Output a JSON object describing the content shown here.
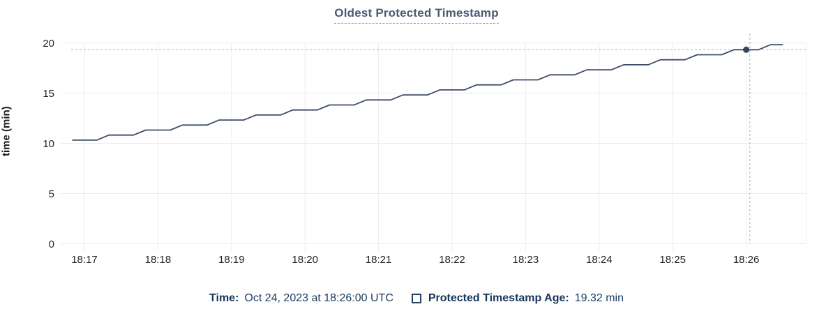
{
  "chart_data": {
    "type": "line",
    "title": "Oldest Protected Timestamp",
    "xlabel": "",
    "ylabel": "time (min)",
    "ylim": [
      0,
      20
    ],
    "y_ticks": [
      0,
      5,
      10,
      15,
      20
    ],
    "x_ticks": [
      "18:17",
      "18:18",
      "18:19",
      "18:20",
      "18:21",
      "18:22",
      "18:23",
      "18:24",
      "18:25",
      "18:26"
    ],
    "x_unit": "minutes since 18:17",
    "grid": true,
    "legend_position": "bottom",
    "series": [
      {
        "name": "Protected Timestamp Age",
        "unit": "min",
        "points": [
          [
            -0.1667,
            10.32
          ],
          [
            0.1667,
            10.32
          ],
          [
            0.3333,
            10.82
          ],
          [
            0.6667,
            10.82
          ],
          [
            0.8333,
            11.32
          ],
          [
            1.1667,
            11.32
          ],
          [
            1.3333,
            11.82
          ],
          [
            1.6667,
            11.82
          ],
          [
            1.8333,
            12.32
          ],
          [
            2.1667,
            12.32
          ],
          [
            2.3333,
            12.82
          ],
          [
            2.6667,
            12.82
          ],
          [
            2.8333,
            13.32
          ],
          [
            3.1667,
            13.32
          ],
          [
            3.3333,
            13.82
          ],
          [
            3.6667,
            13.82
          ],
          [
            3.8333,
            14.32
          ],
          [
            4.1667,
            14.32
          ],
          [
            4.3333,
            14.82
          ],
          [
            4.6667,
            14.82
          ],
          [
            4.8333,
            15.32
          ],
          [
            5.1667,
            15.32
          ],
          [
            5.3333,
            15.82
          ],
          [
            5.6667,
            15.82
          ],
          [
            5.8333,
            16.32
          ],
          [
            6.1667,
            16.32
          ],
          [
            6.3333,
            16.82
          ],
          [
            6.6667,
            16.82
          ],
          [
            6.8333,
            17.32
          ],
          [
            7.1667,
            17.32
          ],
          [
            7.3333,
            17.82
          ],
          [
            7.6667,
            17.82
          ],
          [
            7.8333,
            18.32
          ],
          [
            8.1667,
            18.32
          ],
          [
            8.3333,
            18.82
          ],
          [
            8.6667,
            18.82
          ],
          [
            8.8333,
            19.32
          ],
          [
            9.1667,
            19.32
          ],
          [
            9.3333,
            19.82
          ],
          [
            9.5,
            19.82
          ]
        ]
      }
    ],
    "hover_point": {
      "x_minutes": 9.0,
      "crosshair_x_minutes": 9.05,
      "value": 19.32,
      "time_label": "Oct 24, 2023 at 18:26:00 UTC",
      "value_label": "19.32 min"
    }
  },
  "legend": {
    "time_label": "Time:",
    "time_value": "Oct 24, 2023 at 18:26:00 UTC",
    "series_label": "Protected Timestamp Age:",
    "series_value": "19.32 min"
  },
  "colors": {
    "line": "#3d4c66",
    "dot": "#35445f",
    "crosshair": "#a4bccd",
    "grid": "#ececec",
    "title": "#4c5a74",
    "tick_text": "#232529",
    "legend_text": "#1a3a5f"
  }
}
